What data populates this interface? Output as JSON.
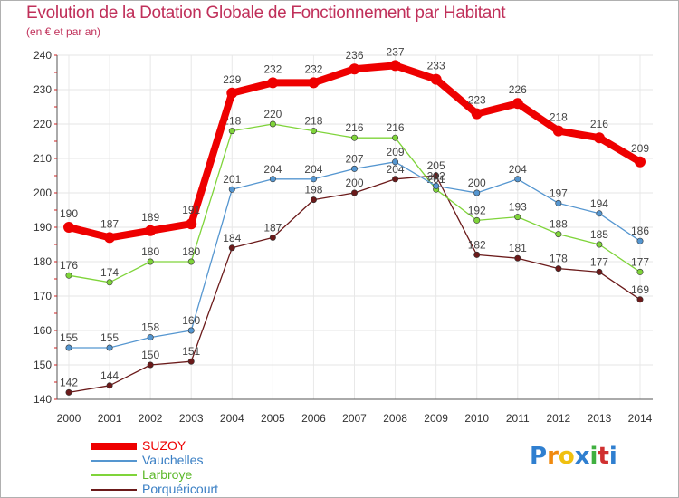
{
  "chart_data": {
    "type": "line",
    "title": "Evolution de la Dotation Globale de Fonctionnement par Habitant",
    "subtitle": "(en € et par an)",
    "x": [
      "2000",
      "2001",
      "2002",
      "2003",
      "2004",
      "2005",
      "2006",
      "2007",
      "2008",
      "2009",
      "2010",
      "2011",
      "2012",
      "2013",
      "2014"
    ],
    "ylim": [
      140,
      240
    ],
    "yticks": [
      140,
      150,
      160,
      170,
      180,
      190,
      200,
      210,
      220,
      230,
      240
    ],
    "series": [
      {
        "name": "Porquéricourt",
        "color": "#6b1a1a",
        "values": [
          142,
          144,
          150,
          151,
          184,
          187,
          198,
          200,
          204,
          205,
          182,
          181,
          178,
          177,
          169
        ]
      },
      {
        "name": "Larbroye",
        "color": "#7fd43a",
        "values": [
          176,
          174,
          180,
          180,
          218,
          220,
          218,
          216,
          216,
          201,
          192,
          193,
          188,
          185,
          177
        ]
      },
      {
        "name": "Vauchelles",
        "color": "#5596d0",
        "values": [
          155,
          155,
          158,
          160,
          201,
          204,
          204,
          207,
          209,
          202,
          200,
          204,
          197,
          194,
          186
        ]
      },
      {
        "name": "SUZOY",
        "color": "#ee0000",
        "values": [
          190,
          187,
          189,
          191,
          229,
          232,
          232,
          236,
          237,
          233,
          223,
          226,
          218,
          216,
          209
        ]
      }
    ]
  },
  "legend": [
    {
      "label": "SUZOY",
      "color": "#ee0000"
    },
    {
      "label": "Vauchelles",
      "color": "#5596d0"
    },
    {
      "label": "Larbroye",
      "color": "#7fd43a"
    },
    {
      "label": "Porquéricourt",
      "color": "#6b1a1a"
    }
  ],
  "logo": {
    "letters": [
      "P",
      "r",
      "o",
      "x",
      "i",
      "t",
      "i"
    ],
    "colors": [
      "#2f7fd0",
      "#f08a10",
      "#f0c010",
      "#2f7fd0",
      "#40b040",
      "#d03030",
      "#2f7fd0"
    ]
  }
}
